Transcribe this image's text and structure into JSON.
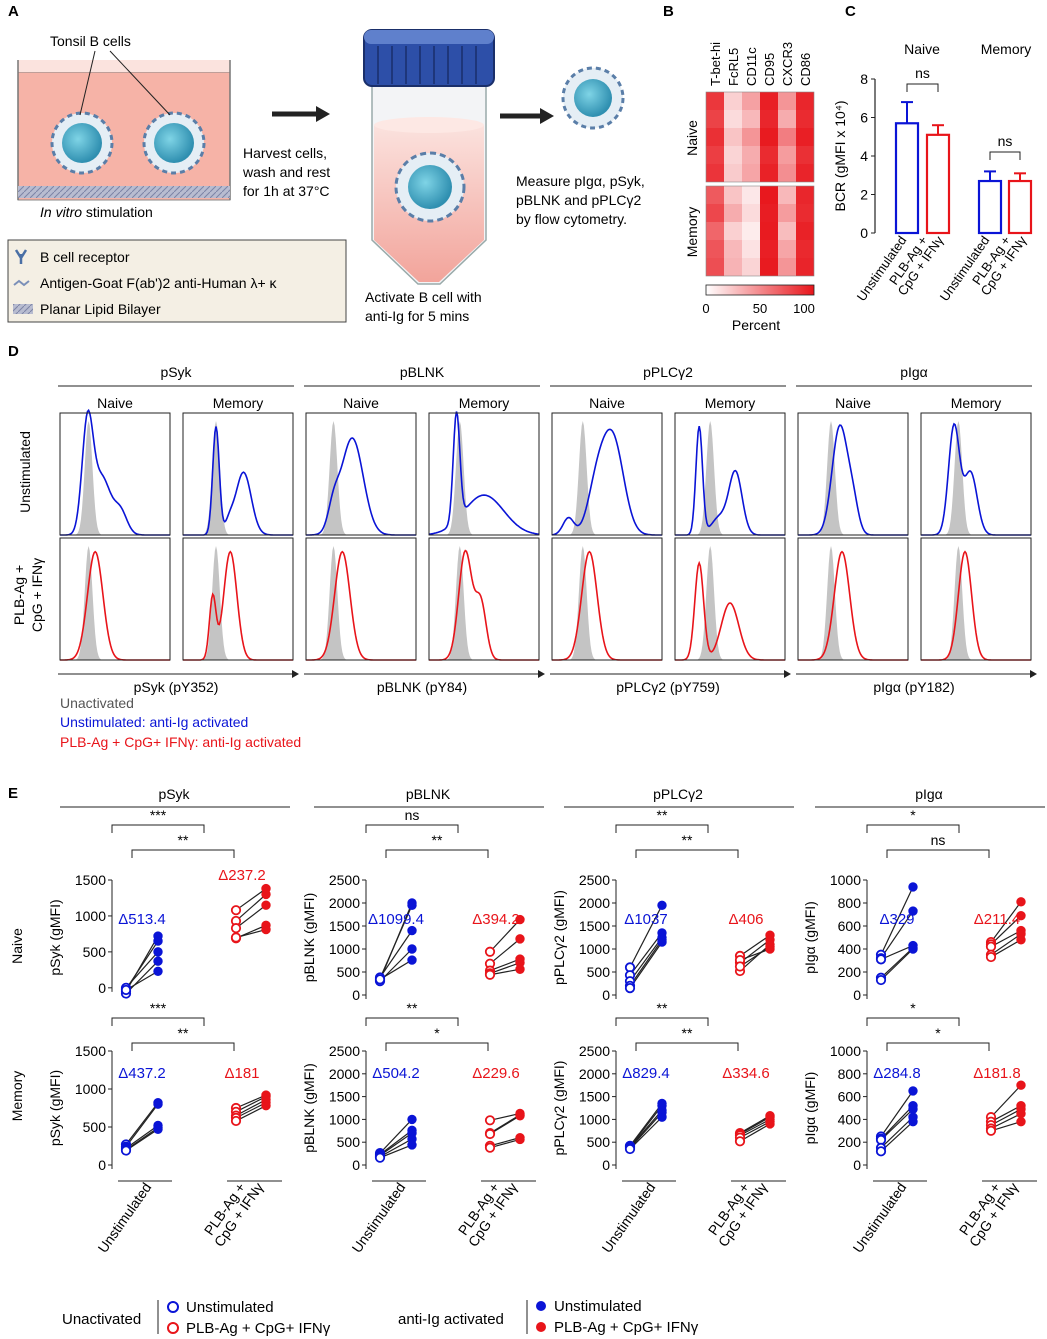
{
  "panels": {
    "A": "A",
    "B": "B",
    "C": "C",
    "D": "D",
    "E": "E"
  },
  "panelA": {
    "tonsil_label": "Tonsil B cells",
    "in_vitro": "In vitro",
    "stimulation": " stimulation",
    "harvest_lines": [
      "Harvest cells,",
      "wash and rest",
      "for 1h at 37°C"
    ],
    "activate_lines": [
      "Activate B cell with",
      "anti-Ig for 5 mins"
    ],
    "measure_lines": [
      "Measure pIgα, pSyk,",
      "pBLNK and pPLCγ2",
      "by flow cytometry."
    ],
    "legend": [
      "B cell receptor",
      "Antigen-Goat F(ab')2 anti-Human λ+ κ",
      "Planar Lipid Bilayer"
    ]
  },
  "panelB": {
    "markers": [
      "T-bet-hi",
      "FcRL5",
      "CD11c",
      "CD95",
      "CXCR3",
      "CD86"
    ],
    "groups": [
      "Naive",
      "Memory"
    ],
    "naive_percent": [
      [
        85,
        20,
        40,
        95,
        45,
        92
      ],
      [
        80,
        15,
        30,
        92,
        35,
        90
      ],
      [
        88,
        25,
        45,
        97,
        55,
        95
      ],
      [
        82,
        18,
        35,
        90,
        42,
        88
      ],
      [
        86,
        22,
        38,
        94,
        48,
        93
      ]
    ],
    "memory_percent": [
      [
        70,
        25,
        10,
        98,
        30,
        92
      ],
      [
        78,
        35,
        15,
        96,
        42,
        90
      ],
      [
        65,
        20,
        8,
        97,
        28,
        94
      ],
      [
        72,
        30,
        12,
        95,
        38,
        91
      ],
      [
        75,
        32,
        18,
        97,
        45,
        93
      ]
    ],
    "colorbar_ticks": [
      "0",
      "50",
      "100"
    ],
    "colorbar_label": "Percent"
  },
  "panelC": {
    "ylabel": "BCR (gMFI x 10⁴)",
    "yticks": [
      "0",
      "2",
      "4",
      "6",
      "8"
    ],
    "groups": [
      "Naive",
      "Memory"
    ],
    "xlabels": [
      "Unstimulated",
      "PLB-Ag +",
      "CpG + IFNγ",
      "Unstimulated",
      "PLB-Ag +",
      "CpG + IFNγ"
    ],
    "sig": [
      "ns",
      "ns"
    ]
  },
  "chart_data": [
    {
      "type": "bar",
      "title": "BCR",
      "ylabel": "BCR (gMFI x 10^4)",
      "ylim": [
        0,
        8
      ],
      "categories": [
        "Naive Unstimulated",
        "Naive PLB-Ag + CpG + IFNγ",
        "Memory Unstimulated",
        "Memory PLB-Ag + CpG + IFNγ"
      ],
      "values": [
        5.7,
        5.1,
        2.7,
        2.7
      ],
      "errors": [
        1.1,
        0.5,
        0.5,
        0.4
      ]
    },
    {
      "type": "scatter",
      "title": "E: paired gMFI",
      "panels": [
        {
          "id": "syk_naive",
          "ylabel": "pSyk (gMFI)",
          "ylim": [
            -100,
            1500
          ],
          "yticks": [
            0,
            500,
            1000,
            1500
          ],
          "delta_unstim": "Δ513.4",
          "delta_stim": "Δ237.2",
          "unact_u": [
            -50,
            -20,
            0,
            -80,
            -30
          ],
          "act_u": [
            720,
            650,
            500,
            370,
            230
          ],
          "unact_s": [
            1080,
            930,
            830,
            690,
            700
          ],
          "act_s": [
            1380,
            1300,
            1150,
            870,
            810
          ]
        },
        {
          "id": "blnk_naive",
          "ylabel": "pBLNK (gMFI)",
          "ylim": [
            0,
            2500
          ],
          "yticks": [
            0,
            500,
            1000,
            1500,
            2000,
            2500
          ],
          "delta_unstim": "Δ1099.4",
          "delta_stim": "Δ394.2",
          "unact_u": [
            320,
            360,
            380,
            300,
            340
          ],
          "act_u": [
            2000,
            1950,
            1400,
            1000,
            760
          ],
          "unact_s": [
            940,
            680,
            530,
            470,
            440
          ],
          "act_s": [
            1640,
            1220,
            780,
            700,
            560
          ]
        },
        {
          "id": "plcg_naive",
          "ylabel": "pPLCγ2 (gMFI)",
          "ylim": [
            0,
            2500
          ],
          "yticks": [
            0,
            500,
            1000,
            1500,
            2000,
            2500
          ],
          "delta_unstim": "Δ1037",
          "delta_stim": "Δ406",
          "unact_u": [
            600,
            430,
            300,
            200,
            150
          ],
          "act_u": [
            1950,
            1350,
            1250,
            1200,
            1150
          ],
          "unact_s": [
            850,
            700,
            520,
            760,
            620
          ],
          "act_s": [
            1300,
            1200,
            1100,
            1000,
            1050
          ]
        },
        {
          "id": "iga_naive",
          "ylabel": "pIgα (gMFI)",
          "ylim": [
            0,
            1000
          ],
          "yticks": [
            0,
            200,
            400,
            600,
            800,
            1000
          ],
          "delta_unstim": "Δ329",
          "delta_stim": "Δ211.4",
          "unact_u": [
            350,
            320,
            310,
            150,
            130
          ],
          "act_u": [
            940,
            730,
            430,
            410,
            400
          ],
          "unact_s": [
            460,
            440,
            420,
            350,
            330
          ],
          "act_s": [
            810,
            690,
            560,
            530,
            480
          ],
          "_": 0
        },
        {
          "id": "syk_mem",
          "ylabel": "pSyk (gMFI)",
          "ylim": [
            0,
            1500
          ],
          "yticks": [
            0,
            500,
            1000,
            1500
          ],
          "delta_unstim": "Δ437.2",
          "delta_stim": "Δ181",
          "unact_u": [
            270,
            240,
            220,
            200,
            190
          ],
          "act_u": [
            820,
            800,
            520,
            490,
            470
          ],
          "unact_s": [
            750,
            700,
            650,
            620,
            580
          ],
          "act_s": [
            920,
            900,
            860,
            820,
            780
          ]
        },
        {
          "id": "blnk_mem",
          "ylabel": "pBLNK (gMFI)",
          "ylim": [
            0,
            2500
          ],
          "yticks": [
            0,
            500,
            1000,
            1500,
            2000,
            2500
          ],
          "delta_unstim": "Δ504.2",
          "delta_stim": "Δ229.6",
          "unact_u": [
            260,
            230,
            210,
            180,
            160
          ],
          "act_u": [
            1000,
            760,
            700,
            570,
            440
          ],
          "unact_s": [
            980,
            700,
            680,
            420,
            380
          ],
          "act_s": [
            1130,
            1100,
            1080,
            600,
            560
          ]
        },
        {
          "id": "plcg_mem",
          "ylabel": "pPLCγ2 (gMFI)",
          "ylim": [
            0,
            2500
          ],
          "yticks": [
            0,
            500,
            1000,
            1500,
            2000,
            2500
          ],
          "delta_unstim": "Δ829.4",
          "delta_stim": "Δ334.6",
          "unact_u": [
            420,
            400,
            390,
            370,
            350
          ],
          "act_u": [
            1350,
            1300,
            1200,
            1150,
            1050
          ],
          "unact_s": [
            700,
            680,
            650,
            600,
            520
          ],
          "act_s": [
            1080,
            1050,
            1000,
            950,
            900
          ]
        },
        {
          "id": "iga_mem",
          "ylabel": "pIgα (gMFI)",
          "ylim": [
            0,
            1000
          ],
          "yticks": [
            0,
            200,
            400,
            600,
            800,
            1000
          ],
          "delta_unstim": "Δ284.8",
          "delta_stim": "Δ181.8",
          "unact_u": [
            250,
            230,
            220,
            150,
            120
          ],
          "act_u": [
            650,
            520,
            490,
            420,
            380
          ],
          "unact_s": [
            420,
            380,
            350,
            320,
            300
          ],
          "act_s": [
            700,
            520,
            490,
            450,
            380
          ]
        }
      ]
    }
  ],
  "panelD": {
    "markers": [
      "pSyk",
      "pBLNK",
      "pPLCγ2",
      "pIgα"
    ],
    "subsets": [
      "Naive",
      "Memory"
    ],
    "rows": [
      "Unstimulated",
      "PLB-Ag +",
      "CpG + IFNγ"
    ],
    "xaxis": [
      "pSyk (pY352)",
      "pBLNK (pY84)",
      "pPLCγ2 (pY759)",
      "pIgα (pY182)"
    ],
    "legend": [
      "Unactivated",
      "Unstimulated: anti-Ig activated",
      "PLB-Ag + CpG+ IFNγ: anti-Ig activated"
    ],
    "colors": {
      "unactivated": "#555555",
      "unstim": "#0a14d6",
      "stim": "#e8141a"
    }
  },
  "panelE": {
    "markers": [
      "pSyk",
      "pBLNK",
      "pPLCγ2",
      "pIgα"
    ],
    "rows": [
      "Naive",
      "Memory"
    ],
    "xlabels": [
      "Unstimulated",
      "PLB-Ag +",
      "CpG + IFNγ"
    ],
    "sig": [
      [
        "***",
        "**"
      ],
      [
        "ns",
        "**"
      ],
      [
        "**",
        "**"
      ],
      [
        "*",
        "ns"
      ],
      [
        "***",
        "**"
      ],
      [
        "**",
        "*"
      ],
      [
        "**",
        "**"
      ],
      [
        "*",
        "*"
      ]
    ],
    "legend": {
      "unactivated": "Unactivated",
      "activated": "anti-Ig activated",
      "unstim": "Unstimulated",
      "stim": "PLB-Ag + CpG+ IFNγ"
    }
  }
}
